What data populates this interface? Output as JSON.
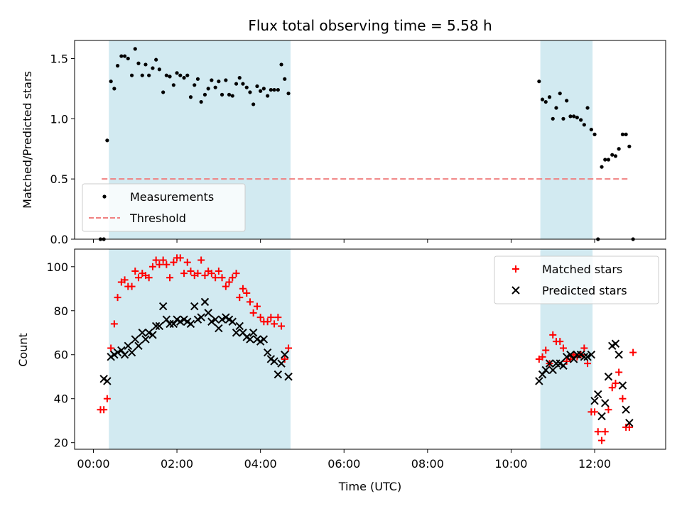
{
  "chart_data": [
    {
      "type": "scatter",
      "title": "Flux total observing time = 5.58 h",
      "ylabel": "Matched/Predicted stars",
      "xlabel": "",
      "x_unit": "hours (UTC)",
      "xlim": [
        -0.45,
        13.7
      ],
      "ylim": [
        0,
        1.65
      ],
      "yticks": [
        "0.0",
        "0.5",
        "1.0",
        "1.5"
      ],
      "ytick_values": [
        0,
        0.5,
        1.0,
        1.5
      ],
      "grid": false,
      "legend_position": "lower-left",
      "shaded_intervals": [
        [
          0.37,
          4.72
        ],
        [
          10.7,
          11.95
        ]
      ],
      "shade_color": "#add8e6",
      "threshold": {
        "name": "Threshold",
        "value": 0.5,
        "x_range": [
          0.2,
          12.85
        ],
        "color": "#f08080"
      },
      "series": [
        {
          "name": "Measurements",
          "color": "#000000",
          "marker": "dot",
          "x": [
            0.17,
            0.25,
            0.33,
            0.42,
            0.5,
            0.58,
            0.67,
            0.75,
            0.83,
            0.92,
            1.0,
            1.08,
            1.17,
            1.25,
            1.33,
            1.42,
            1.5,
            1.58,
            1.67,
            1.75,
            1.83,
            1.92,
            2.0,
            2.08,
            2.17,
            2.25,
            2.33,
            2.42,
            2.5,
            2.58,
            2.67,
            2.75,
            2.83,
            2.92,
            3.0,
            3.08,
            3.17,
            3.25,
            3.33,
            3.42,
            3.5,
            3.58,
            3.67,
            3.75,
            3.83,
            3.92,
            4.0,
            4.08,
            4.17,
            4.25,
            4.33,
            4.42,
            4.5,
            4.58,
            4.67,
            10.67,
            10.75,
            10.83,
            10.92,
            11.0,
            11.08,
            11.17,
            11.25,
            11.33,
            11.42,
            11.5,
            11.58,
            11.67,
            11.75,
            11.83,
            11.92,
            12.0,
            12.08,
            12.17,
            12.25,
            12.33,
            12.42,
            12.5,
            12.58,
            12.67,
            12.75,
            12.83,
            12.92
          ],
          "y": [
            0,
            0,
            0.82,
            1.31,
            1.25,
            1.44,
            1.52,
            1.52,
            1.5,
            1.36,
            1.58,
            1.46,
            1.36,
            1.45,
            1.36,
            1.42,
            1.49,
            1.41,
            1.22,
            1.36,
            1.35,
            1.28,
            1.38,
            1.36,
            1.34,
            1.36,
            1.18,
            1.28,
            1.33,
            1.14,
            1.2,
            1.25,
            1.32,
            1.26,
            1.31,
            1.2,
            1.32,
            1.2,
            1.19,
            1.29,
            1.34,
            1.29,
            1.26,
            1.22,
            1.12,
            1.27,
            1.23,
            1.25,
            1.19,
            1.24,
            1.24,
            1.24,
            1.45,
            1.33,
            1.21,
            1.31,
            1.16,
            1.14,
            1.18,
            1.0,
            1.09,
            1.21,
            1.0,
            1.15,
            1.02,
            1.02,
            1.01,
            0.99,
            0.95,
            1.09,
            0.91,
            0.87,
            0,
            0.6,
            0.66,
            0.66,
            0.7,
            0.69,
            0.75,
            0.87,
            0.87,
            0.77,
            0
          ]
        }
      ]
    },
    {
      "type": "scatter",
      "title": "",
      "ylabel": "Count",
      "xlabel": "Time (UTC)",
      "x_unit": "hours (UTC)",
      "xlim": [
        -0.45,
        13.7
      ],
      "ylim": [
        17,
        108
      ],
      "xticks": [
        "00:00",
        "02:00",
        "04:00",
        "06:00",
        "08:00",
        "10:00",
        "12:00"
      ],
      "xtick_values": [
        0,
        2,
        4,
        6,
        8,
        10,
        12
      ],
      "yticks": [
        "20",
        "40",
        "60",
        "80",
        "100"
      ],
      "ytick_values": [
        20,
        40,
        60,
        80,
        100
      ],
      "grid": false,
      "legend_position": "upper-right",
      "shaded_intervals": [
        [
          0.37,
          4.72
        ],
        [
          10.7,
          11.95
        ]
      ],
      "shade_color": "#add8e6",
      "series": [
        {
          "name": "Matched stars",
          "color": "#ff0000",
          "marker": "plus",
          "x": [
            0.17,
            0.25,
            0.33,
            0.42,
            0.5,
            0.58,
            0.67,
            0.75,
            0.83,
            0.92,
            1.0,
            1.08,
            1.17,
            1.25,
            1.33,
            1.42,
            1.5,
            1.58,
            1.67,
            1.75,
            1.83,
            1.92,
            2.0,
            2.08,
            2.17,
            2.25,
            2.33,
            2.42,
            2.5,
            2.58,
            2.67,
            2.75,
            2.83,
            2.92,
            3.0,
            3.08,
            3.17,
            3.25,
            3.33,
            3.42,
            3.5,
            3.58,
            3.67,
            3.75,
            3.83,
            3.92,
            4.0,
            4.08,
            4.17,
            4.25,
            4.33,
            4.42,
            4.5,
            4.58,
            4.67,
            10.67,
            10.75,
            10.83,
            10.92,
            11.0,
            11.08,
            11.17,
            11.25,
            11.33,
            11.42,
            11.5,
            11.58,
            11.67,
            11.75,
            11.83,
            11.92,
            12.0,
            12.08,
            12.17,
            12.25,
            12.33,
            12.42,
            12.5,
            12.58,
            12.67,
            12.75,
            12.83,
            12.92
          ],
          "y": [
            35,
            35,
            40,
            63,
            74,
            86,
            93,
            94,
            91,
            91,
            98,
            95,
            97,
            96,
            95,
            100,
            103,
            101,
            103,
            101,
            95,
            102,
            104,
            104,
            97,
            102,
            98,
            96,
            97,
            103,
            96,
            98,
            97,
            95,
            98,
            95,
            91,
            93,
            95,
            97,
            86,
            90,
            88,
            84,
            79,
            82,
            77,
            75,
            75,
            77,
            74,
            77,
            73,
            58,
            63,
            58,
            59,
            62,
            56,
            69,
            66,
            66,
            63,
            57,
            58,
            60,
            59,
            60,
            63,
            56,
            34,
            34,
            25,
            21,
            25,
            35,
            45,
            47,
            52,
            40,
            27,
            27,
            61
          ]
        },
        {
          "name": "Predicted stars",
          "color": "#000000",
          "marker": "x",
          "x": [
            0.25,
            0.33,
            0.42,
            0.5,
            0.58,
            0.67,
            0.75,
            0.83,
            0.92,
            1.0,
            1.08,
            1.17,
            1.25,
            1.33,
            1.42,
            1.5,
            1.58,
            1.67,
            1.75,
            1.83,
            1.92,
            2.0,
            2.08,
            2.17,
            2.25,
            2.33,
            2.42,
            2.5,
            2.58,
            2.67,
            2.75,
            2.83,
            2.92,
            3.0,
            3.08,
            3.17,
            3.25,
            3.33,
            3.42,
            3.5,
            3.58,
            3.67,
            3.75,
            3.83,
            3.92,
            4.0,
            4.08,
            4.17,
            4.25,
            4.33,
            4.42,
            4.5,
            4.58,
            4.67,
            10.67,
            10.75,
            10.83,
            10.92,
            11.0,
            11.08,
            11.17,
            11.25,
            11.33,
            11.42,
            11.5,
            11.58,
            11.67,
            11.75,
            11.83,
            11.92,
            12.0,
            12.08,
            12.17,
            12.25,
            12.33,
            12.42,
            12.5,
            12.58,
            12.67,
            12.75,
            12.83
          ],
          "y": [
            49,
            48,
            59,
            60,
            61,
            62,
            60,
            64,
            61,
            67,
            64,
            70,
            67,
            70,
            69,
            73,
            73,
            82,
            76,
            74,
            74,
            76,
            75,
            76,
            75,
            74,
            82,
            76,
            77,
            84,
            79,
            75,
            76,
            72,
            76,
            77,
            76,
            75,
            70,
            73,
            70,
            68,
            67,
            70,
            67,
            66,
            67,
            61,
            58,
            57,
            51,
            56,
            60,
            50,
            48,
            51,
            53,
            56,
            53,
            56,
            56,
            55,
            59,
            60,
            58,
            60,
            60,
            59,
            59,
            60,
            39,
            42,
            32,
            38,
            50,
            64,
            65,
            60,
            46,
            35,
            29
          ]
        }
      ]
    }
  ]
}
